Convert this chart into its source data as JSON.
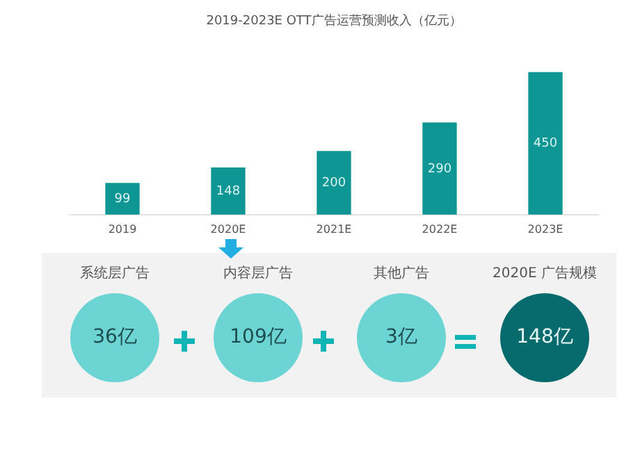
{
  "chart_data": [
    {
      "type": "bar",
      "title": "2019-2023E OTT广告运营预测收入（亿元）",
      "categories": [
        "2019",
        "2020E",
        "2021E",
        "2022E",
        "2023E"
      ],
      "values": [
        99,
        148,
        200,
        290,
        450
      ],
      "color": "#0e9694",
      "data_labels": true,
      "grid": false,
      "legend": false
    },
    {
      "type": "other",
      "categories": [
        "系统层广告",
        "内容层广告",
        "其他广告",
        "2020E 广告规模"
      ],
      "value_labels": [
        "36亿",
        "109亿",
        "3亿",
        "148亿"
      ]
    }
  ]
}
